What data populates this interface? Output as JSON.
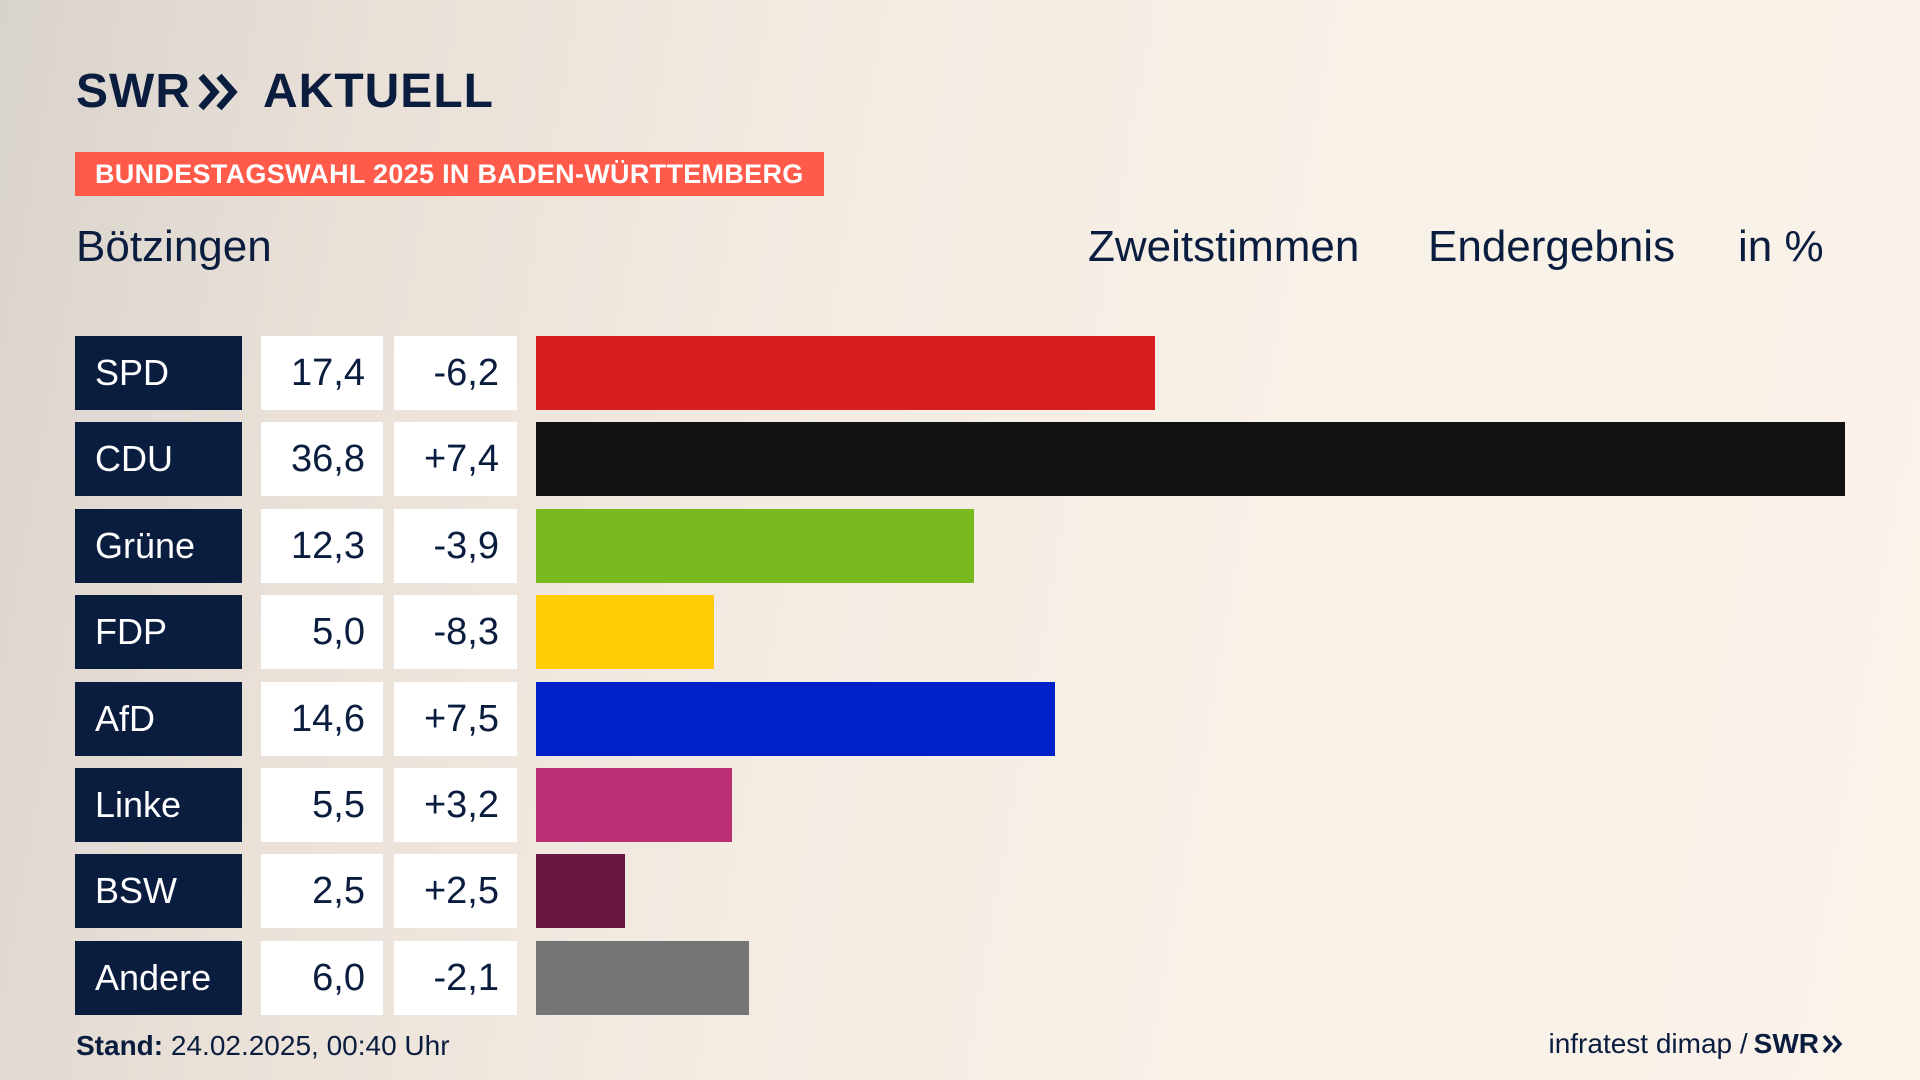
{
  "logo": {
    "text_swr": "SWR",
    "text_aktuell": "AKTUELL"
  },
  "banner": "BUNDESTAGSWAHL 2025 IN BADEN-WÜRTTEMBERG",
  "place": "Bötzingen",
  "subheads": [
    "Zweitstimmen",
    "Endergebnis",
    "in %"
  ],
  "colors": {
    "navy": "#0b1d3f",
    "banner": "#ff5a4a"
  },
  "chart_data": {
    "type": "bar",
    "orientation": "horizontal",
    "categories": [
      "SPD",
      "CDU",
      "Grüne",
      "FDP",
      "AfD",
      "Linke",
      "BSW",
      "Andere"
    ],
    "values": [
      17.4,
      36.8,
      12.3,
      5.0,
      14.6,
      5.5,
      2.5,
      6.0
    ],
    "value_labels": [
      "17,4",
      "36,8",
      "12,3",
      "5,0",
      "14,6",
      "5,5",
      "2,5",
      "6,0"
    ],
    "diff_labels": [
      "-6,2",
      "+7,4",
      "-3,9",
      "-8,3",
      "+7,5",
      "+3,2",
      "+2,5",
      "-2,1"
    ],
    "colors": [
      "#d71f1f",
      "#121212",
      "#7aba1e",
      "#ffcc05",
      "#0021c8",
      "#bb3075",
      "#69173e",
      "#757575"
    ],
    "xlim": [
      0,
      36.8
    ]
  },
  "footer": {
    "stand_label": "Stand:",
    "stand_value": " 24.02.2025, 00:40 Uhr",
    "source": "infratest dimap / ",
    "source_brand": "SWR"
  }
}
